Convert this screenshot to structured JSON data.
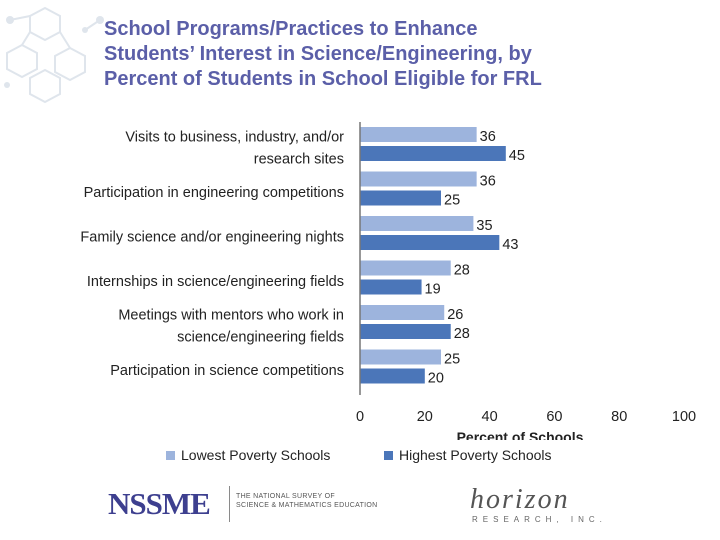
{
  "title_lines": [
    "School Programs/Practices to Enhance",
    "Students’ Interest in Science/Engineering, by",
    "Percent of Students in School Eligible for FRL"
  ],
  "colors": {
    "title": "#5b5fa8",
    "lowest_poverty": "#9db4dd",
    "highest_poverty": "#4b76b9",
    "decoration": "#dfe5ec"
  },
  "chart_data": {
    "type": "bar",
    "orientation": "horizontal",
    "categories": [
      [
        "Visits to business, industry, and/or",
        "research sites"
      ],
      [
        "Participation in engineering competitions"
      ],
      [
        "Family science and/or engineering nights"
      ],
      [
        "Internships in science/engineering fields"
      ],
      [
        "Meetings with mentors who work in",
        "science/engineering fields"
      ],
      [
        "Participation in science competitions"
      ]
    ],
    "series": [
      {
        "name": "Lowest Poverty Schools",
        "values": [
          36,
          36,
          35,
          28,
          26,
          25
        ]
      },
      {
        "name": "Highest Poverty Schools",
        "values": [
          45,
          25,
          43,
          19,
          28,
          20
        ]
      }
    ],
    "xlabel": "Percent of Schools",
    "xlim": [
      0,
      100
    ],
    "xticks": [
      0,
      20,
      40,
      60,
      80,
      100
    ],
    "grid": false,
    "legend_position": "bottom"
  },
  "footer": {
    "nssme_logo": "NSSME",
    "nssme_subtitle_lines": [
      "THE NATIONAL SURVEY OF",
      "SCIENCE & MATHEMATICS EDUCATION"
    ],
    "horizon_logo": "horizon",
    "horizon_subtitle": "RESEARCH, INC."
  }
}
